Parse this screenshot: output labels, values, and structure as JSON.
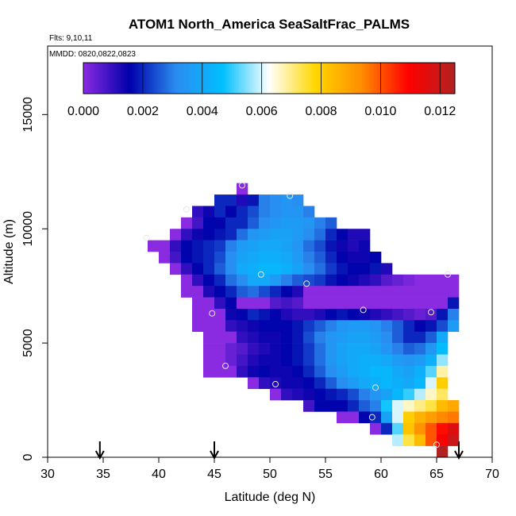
{
  "chart_data": {
    "type": "heatmap",
    "title": "ATOM1 North_America SeaSaltFrac_PALMS",
    "subtitle_flights": "Flts: 9,10,11",
    "subtitle_dates": "MMDD: 0820,0822,0823",
    "xlabel": "Latitude (deg N)",
    "ylabel": "Altitude (m)",
    "xlim": [
      30,
      70
    ],
    "ylim": [
      0,
      18000
    ],
    "x_ticks": [
      30,
      35,
      40,
      45,
      50,
      55,
      60,
      65,
      70
    ],
    "y_ticks": [
      0,
      5000,
      10000,
      15000
    ],
    "colorbar": {
      "range": [
        0,
        0.0125
      ],
      "ticks": [
        "0.000",
        "0.002",
        "0.004",
        "0.006",
        "0.008",
        "0.010",
        "0.012"
      ],
      "tick_values": [
        0,
        0.002,
        0.004,
        0.006,
        0.008,
        0.01,
        0.012
      ],
      "colors": [
        "#8a2be2",
        "#0000aa",
        "#2b8cf0",
        "#00bfff",
        "#ffffff",
        "#ffd700",
        "#ff8c00",
        "#ff0000",
        "#b22222"
      ]
    },
    "cell_size": {
      "dlat": 1.0,
      "dalt": 500
    },
    "grid_rows": [
      {
        "alt": 12000,
        "lat0": 47,
        "values": [
          0.0
        ]
      },
      {
        "alt": 11500,
        "lat0": 45,
        "values": [
          0.002,
          0.002,
          0.0012,
          0.0018,
          0.003,
          0.0032,
          0.0034,
          0.0032
        ]
      },
      {
        "alt": 11000,
        "lat0": 43,
        "values": [
          0.001,
          0.0014,
          0.002,
          0.0016,
          0.002,
          0.0024,
          0.003,
          0.0032,
          0.0034,
          0.0034,
          0.003
        ]
      },
      {
        "alt": 10500,
        "lat0": 42,
        "values": [
          0.0,
          0.0008,
          0.0016,
          0.0016,
          0.002,
          0.002,
          0.0026,
          0.0032,
          0.0034,
          0.0036,
          0.0036,
          0.0034,
          0.003,
          0.0026
        ]
      },
      {
        "alt": 10000,
        "lat0": 41,
        "values": [
          0.0,
          0.001,
          0.0014,
          0.0016,
          0.0018,
          0.002,
          0.0028,
          0.0034,
          0.0036,
          0.0038,
          0.0038,
          0.0036,
          0.0032,
          0.0028,
          0.002,
          0.0016,
          0.0012,
          0.0012
        ]
      },
      {
        "alt": 9500,
        "lat0": 39,
        "values": [
          0.0,
          0.0,
          0.001,
          0.0016,
          0.0018,
          0.002,
          0.0022,
          0.003,
          0.0036,
          0.0038,
          0.004,
          0.004,
          0.0038,
          0.0034,
          0.0028,
          0.0024,
          0.0018,
          0.0014,
          0.0012,
          0.0014
        ]
      },
      {
        "alt": 9000,
        "lat0": 40,
        "values": [
          0.0,
          0.0008,
          0.0016,
          0.0018,
          0.002,
          0.0024,
          0.0032,
          0.0038,
          0.004,
          0.0042,
          0.0042,
          0.004,
          0.0036,
          0.003,
          0.0026,
          0.002,
          0.0016,
          0.0014,
          0.0014,
          0.0016
        ]
      },
      {
        "alt": 8500,
        "lat0": 41,
        "values": [
          0.0,
          0.001,
          0.0016,
          0.002,
          0.0026,
          0.0032,
          0.004,
          0.0042,
          0.0044,
          0.0044,
          0.0042,
          0.0038,
          0.0032,
          0.0028,
          0.0022,
          0.0018,
          0.0016,
          0.0016,
          0.0018,
          0.0012
        ]
      },
      {
        "alt": 8000,
        "lat0": 42,
        "values": [
          0.0,
          0.001,
          0.0016,
          0.002,
          0.0028,
          0.0032,
          0.004,
          0.004,
          0.0036,
          0.003,
          0.0026,
          0.0024,
          0.0022,
          0.0018,
          0.0016,
          0.0014,
          0.0012,
          0.001,
          0.0006,
          0.0004,
          0.0002,
          0.0,
          0.0,
          0.0,
          0.0
        ]
      },
      {
        "alt": 7500,
        "lat0": 42,
        "values": [
          0.0,
          0.0,
          0.0012,
          0.0016,
          0.002,
          0.0026,
          0.0028,
          0.0024,
          0.002,
          0.0016,
          0.0012,
          0.0,
          0.0,
          0.0,
          0.0,
          0.0,
          0.0,
          0.0,
          0.0,
          0.0,
          0.0,
          0.0,
          0.0,
          0.0,
          0.0
        ]
      },
      {
        "alt": 7000,
        "lat0": 43,
        "values": [
          0.0,
          0.0,
          0.001,
          0.0016,
          0.0,
          0.0,
          0.0,
          0.0006,
          0.0008,
          0.0006,
          0.0,
          0.0,
          0.0,
          0.0,
          0.0,
          0.0,
          0.0,
          0.0,
          0.0,
          0.0,
          0.0,
          0.0,
          0.0,
          0.0018
        ]
      },
      {
        "alt": 6500,
        "lat0": 43,
        "values": [
          0.0,
          0.0,
          0.0,
          0.0014,
          0.0016,
          0.002,
          0.0018,
          0.0016,
          0.0012,
          0.001,
          0.001,
          0.0012,
          0.0016,
          0.0018,
          0.0016,
          0.0014,
          0.0012,
          0.001,
          0.0008,
          0.0006,
          0.0004,
          0.0006,
          0.0018,
          0.003
        ]
      },
      {
        "alt": 6000,
        "lat0": 43,
        "values": [
          0.0,
          0.0,
          0.0,
          0.001,
          0.0012,
          0.0014,
          0.0016,
          0.0016,
          0.0016,
          0.0018,
          0.0022,
          0.0026,
          0.003,
          0.0034,
          0.0036,
          0.0036,
          0.0034,
          0.003,
          0.0026,
          0.002,
          0.0016,
          0.0018,
          0.0024,
          0.0036
        ]
      },
      {
        "alt": 5500,
        "lat0": 44,
        "values": [
          0.0,
          0.0,
          0.0,
          0.001,
          0.0012,
          0.0014,
          0.0014,
          0.0016,
          0.0018,
          0.0024,
          0.003,
          0.0034,
          0.0036,
          0.0038,
          0.0038,
          0.0036,
          0.0032,
          0.0026,
          0.002,
          0.002,
          0.0026,
          0.004
        ]
      },
      {
        "alt": 5000,
        "lat0": 44,
        "values": [
          0.0,
          0.0,
          0.0004,
          0.0006,
          0.001,
          0.0012,
          0.0014,
          0.0016,
          0.0018,
          0.0022,
          0.0028,
          0.0034,
          0.0038,
          0.004,
          0.004,
          0.0038,
          0.0034,
          0.003,
          0.0026,
          0.0028,
          0.0034,
          0.0046
        ]
      },
      {
        "alt": 4500,
        "lat0": 44,
        "values": [
          0.0,
          0.0,
          0.0004,
          0.0008,
          0.0012,
          0.0014,
          0.0014,
          0.0016,
          0.0018,
          0.0022,
          0.0028,
          0.0034,
          0.0038,
          0.004,
          0.0042,
          0.0042,
          0.004,
          0.0036,
          0.0034,
          0.0036,
          0.0042,
          0.0056
        ]
      },
      {
        "alt": 4000,
        "lat0": 44,
        "values": [
          0.0,
          0.0,
          0.0,
          0.001,
          0.0014,
          0.0016,
          0.0014,
          0.0014,
          0.0016,
          0.002,
          0.0026,
          0.0032,
          0.0036,
          0.004,
          0.0042,
          0.0044,
          0.0044,
          0.004,
          0.0038,
          0.0042,
          0.0052,
          0.0068
        ]
      },
      {
        "alt": 3500,
        "lat0": 48,
        "values": [
          0.0,
          0.001,
          0.0012,
          0.0014,
          0.0014,
          0.0016,
          0.002,
          0.0026,
          0.0032,
          0.0036,
          0.004,
          0.0042,
          0.0044,
          0.0042,
          0.004,
          0.0044,
          0.006,
          0.008
        ]
      },
      {
        "alt": 3000,
        "lat0": 50,
        "values": [
          0.0,
          0.001,
          0.0012,
          0.0014,
          0.0016,
          0.0018,
          0.002,
          0.0024,
          0.003,
          0.0034,
          0.0038,
          0.0044,
          0.005,
          0.0058,
          0.0066,
          0.0072
        ]
      },
      {
        "alt": 2500,
        "lat0": 53,
        "values": [
          0.0008,
          0.0016,
          0.0016,
          0.0016,
          0.002,
          0.0026,
          0.003,
          0.0048,
          0.006,
          0.0066,
          0.007,
          0.0074,
          0.0084,
          0.0088
        ]
      },
      {
        "alt": 2000,
        "lat0": 56,
        "values": [
          0.0,
          0.0,
          0.0016,
          0.002,
          0.0038,
          0.006,
          0.008,
          0.0086,
          0.009,
          0.0094,
          0.0096
        ]
      },
      {
        "alt": 1500,
        "lat0": 59,
        "values": [
          0.0,
          0.002,
          0.0052,
          0.0082,
          0.0092,
          0.01,
          0.0108,
          0.0116
        ]
      },
      {
        "alt": 1000,
        "lat0": 61,
        "values": [
          0.0058,
          0.0074,
          0.0084,
          0.01,
          0.011,
          0.012
        ]
      },
      {
        "alt": 500,
        "lat0": 65,
        "values": [
          0.0125
        ]
      }
    ],
    "points": [
      {
        "lat": 47.5,
        "alt": 11900
      },
      {
        "lat": 51.8,
        "alt": 11450
      },
      {
        "lat": 42.5,
        "alt": 10850
      },
      {
        "lat": 38.9,
        "alt": 9600
      },
      {
        "lat": 49.2,
        "alt": 8000
      },
      {
        "lat": 53.3,
        "alt": 7600
      },
      {
        "lat": 66.0,
        "alt": 8000
      },
      {
        "lat": 44.8,
        "alt": 6300
      },
      {
        "lat": 58.4,
        "alt": 6450
      },
      {
        "lat": 64.5,
        "alt": 6350
      },
      {
        "lat": 46.0,
        "alt": 4000
      },
      {
        "lat": 50.5,
        "alt": 3200
      },
      {
        "lat": 59.5,
        "alt": 3050
      },
      {
        "lat": 59.2,
        "alt": 1750
      },
      {
        "lat": 65.0,
        "alt": 550
      }
    ],
    "arrows_lat": [
      34.7,
      45.0,
      67.0
    ]
  }
}
